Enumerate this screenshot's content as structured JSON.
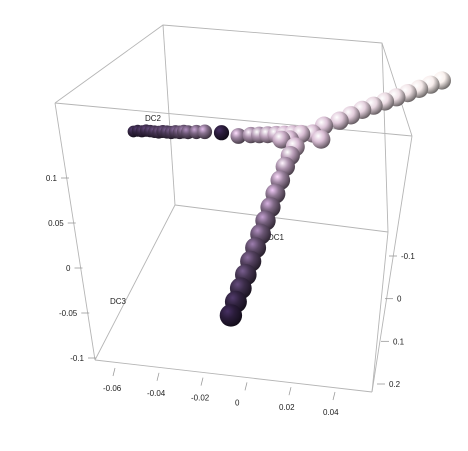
{
  "chart_data": {
    "type": "scatter",
    "title": "",
    "dimensions": 3,
    "axes": {
      "x": {
        "label": "DC1",
        "ticks": [
          -0.06,
          -0.04,
          -0.02,
          0,
          0.02,
          0.04
        ],
        "tick_labels": [
          "-0.06",
          "-0.04",
          "-0.02",
          "0",
          "0.02",
          "0.04"
        ],
        "range": [
          -0.07,
          0.05
        ]
      },
      "y": {
        "label": "DC2",
        "ticks": [
          -0.1,
          0,
          0.1,
          0.2
        ],
        "tick_labels": [
          "-0.1",
          "0",
          "0.1",
          "0.2"
        ],
        "range": [
          -0.15,
          0.22
        ]
      },
      "z": {
        "label": "DC3",
        "ticks": [
          -0.1,
          -0.05,
          0,
          0.05,
          0.1
        ],
        "tick_labels": [
          "-0.1",
          "-0.05",
          "0",
          "0.05",
          "0.1"
        ],
        "range": [
          -0.11,
          0.11
        ]
      }
    },
    "color_scale": [
      "#1f1230",
      "#d6b8d2",
      "#fbf3ef"
    ],
    "series": [
      {
        "points": [
          {
            "x": -0.06,
            "y": 0.02,
            "z": 0.095,
            "c": 0.05
          },
          {
            "x": -0.058,
            "y": 0.02,
            "z": 0.096,
            "c": 0.05
          },
          {
            "x": -0.056,
            "y": 0.02,
            "z": 0.096,
            "c": 0.06
          },
          {
            "x": -0.054,
            "y": 0.02,
            "z": 0.097,
            "c": 0.07
          },
          {
            "x": -0.052,
            "y": 0.02,
            "z": 0.097,
            "c": 0.08
          },
          {
            "x": -0.05,
            "y": 0.02,
            "z": 0.097,
            "c": 0.09
          },
          {
            "x": -0.048,
            "y": 0.02,
            "z": 0.097,
            "c": 0.1
          },
          {
            "x": -0.046,
            "y": 0.02,
            "z": 0.098,
            "c": 0.1
          },
          {
            "x": -0.044,
            "y": 0.02,
            "z": 0.098,
            "c": 0.11
          },
          {
            "x": -0.042,
            "y": 0.02,
            "z": 0.098,
            "c": 0.12
          },
          {
            "x": -0.04,
            "y": 0.02,
            "z": 0.099,
            "c": 0.14
          },
          {
            "x": -0.038,
            "y": 0.02,
            "z": 0.099,
            "c": 0.16
          },
          {
            "x": -0.036,
            "y": 0.02,
            "z": 0.1,
            "c": 0.18
          },
          {
            "x": -0.034,
            "y": 0.02,
            "z": 0.1,
            "c": 0.2
          },
          {
            "x": -0.03,
            "y": 0.02,
            "z": 0.101,
            "c": 0.24
          },
          {
            "x": -0.026,
            "y": 0.02,
            "z": 0.102,
            "c": 0.28
          },
          {
            "x": -0.018,
            "y": 0.02,
            "z": 0.103,
            "c": 0.03
          },
          {
            "x": -0.01,
            "y": 0.02,
            "z": 0.102,
            "c": 0.34
          },
          {
            "x": -0.004,
            "y": 0.02,
            "z": 0.104,
            "c": 0.38
          },
          {
            "x": 0.0,
            "y": 0.02,
            "z": 0.105,
            "c": 0.4
          },
          {
            "x": 0.004,
            "y": 0.02,
            "z": 0.106,
            "c": 0.43
          },
          {
            "x": 0.008,
            "y": 0.02,
            "z": 0.107,
            "c": 0.46
          },
          {
            "x": 0.012,
            "y": 0.02,
            "z": 0.108,
            "c": 0.5
          },
          {
            "x": 0.016,
            "y": 0.02,
            "z": 0.109,
            "c": 0.53
          },
          {
            "x": 0.02,
            "y": 0.02,
            "z": 0.11,
            "c": 0.56
          },
          {
            "x": 0.018,
            "y": 0.01,
            "z": 0.108,
            "c": 0.5
          },
          {
            "x": 0.022,
            "y": 0.03,
            "z": 0.108,
            "c": 0.56
          },
          {
            "x": 0.014,
            "y": 0.01,
            "z": 0.107,
            "c": 0.47
          },
          {
            "x": 0.024,
            "y": 0.0,
            "z": 0.106,
            "c": 0.52
          },
          {
            "x": 0.026,
            "y": 0.03,
            "z": 0.104,
            "c": 0.55
          },
          {
            "x": 0.024,
            "y": 0.04,
            "z": 0.112,
            "c": 0.6
          },
          {
            "x": 0.028,
            "y": 0.05,
            "z": 0.114,
            "c": 0.64
          },
          {
            "x": 0.03,
            "y": 0.06,
            "z": 0.116,
            "c": 0.68
          },
          {
            "x": 0.032,
            "y": 0.07,
            "z": 0.118,
            "c": 0.72
          },
          {
            "x": 0.034,
            "y": 0.08,
            "z": 0.119,
            "c": 0.76
          },
          {
            "x": 0.036,
            "y": 0.09,
            "z": 0.12,
            "c": 0.8
          },
          {
            "x": 0.038,
            "y": 0.1,
            "z": 0.121,
            "c": 0.84
          },
          {
            "x": 0.04,
            "y": 0.11,
            "z": 0.122,
            "c": 0.88
          },
          {
            "x": 0.042,
            "y": 0.12,
            "z": 0.123,
            "c": 0.92
          },
          {
            "x": 0.044,
            "y": 0.13,
            "z": 0.124,
            "c": 0.95
          },
          {
            "x": 0.046,
            "y": 0.14,
            "z": 0.125,
            "c": 0.98
          },
          {
            "x": 0.025,
            "y": -0.01,
            "z": 0.102,
            "c": 0.42
          },
          {
            "x": 0.026,
            "y": -0.02,
            "z": 0.096,
            "c": 0.38
          },
          {
            "x": 0.027,
            "y": -0.03,
            "z": 0.088,
            "c": 0.34
          },
          {
            "x": 0.028,
            "y": -0.04,
            "z": 0.08,
            "c": 0.3
          },
          {
            "x": 0.029,
            "y": -0.05,
            "z": 0.072,
            "c": 0.26
          },
          {
            "x": 0.03,
            "y": -0.06,
            "z": 0.064,
            "c": 0.23
          },
          {
            "x": 0.031,
            "y": -0.07,
            "z": 0.056,
            "c": 0.2
          },
          {
            "x": 0.032,
            "y": -0.08,
            "z": 0.048,
            "c": 0.17
          },
          {
            "x": 0.033,
            "y": -0.09,
            "z": 0.04,
            "c": 0.14
          },
          {
            "x": 0.034,
            "y": -0.1,
            "z": 0.032,
            "c": 0.11
          },
          {
            "x": 0.035,
            "y": -0.11,
            "z": 0.024,
            "c": 0.08
          },
          {
            "x": 0.036,
            "y": -0.12,
            "z": 0.016,
            "c": 0.05
          },
          {
            "x": 0.037,
            "y": -0.13,
            "z": 0.008,
            "c": 0.03
          }
        ]
      }
    ]
  }
}
